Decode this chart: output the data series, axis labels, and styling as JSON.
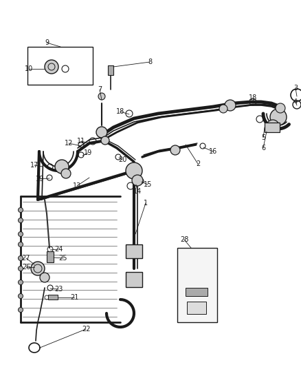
{
  "background_color": "#ffffff",
  "figure_width": 4.38,
  "figure_height": 5.33,
  "dpi": 100,
  "line_color": "#1a1a1a",
  "gray_fill": "#aaaaaa",
  "light_gray": "#cccccc",
  "label_fontsize": 7.0,
  "label_color": "#1a1a1a"
}
